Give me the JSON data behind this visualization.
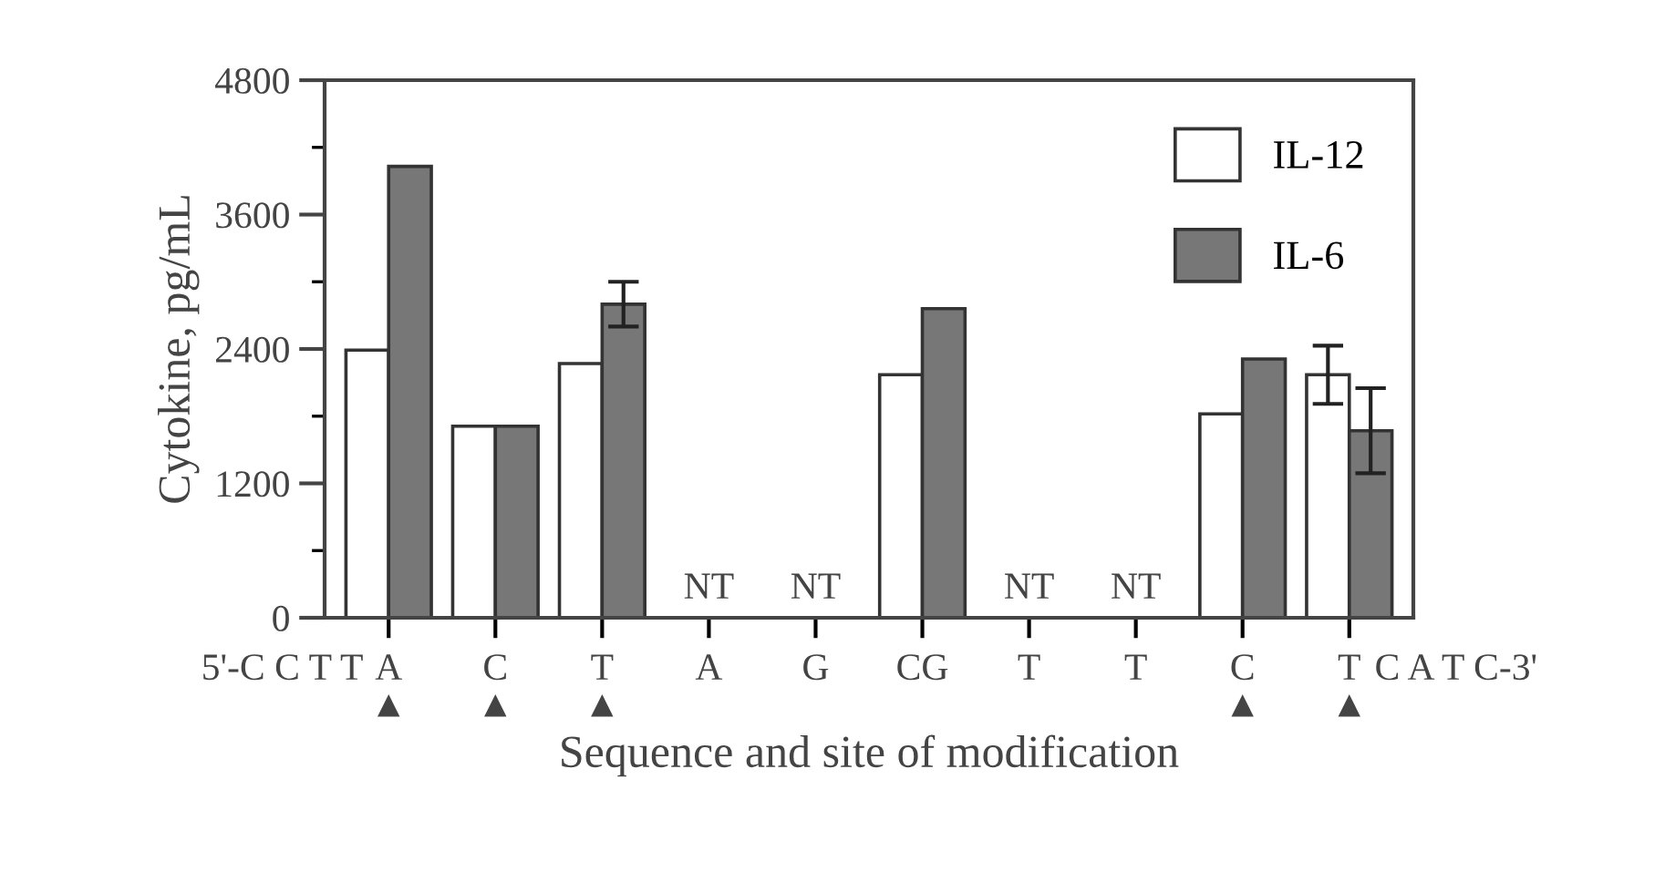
{
  "chart_data": {
    "type": "bar",
    "xlabel": "Sequence and site of modification",
    "ylabel": "Cytokine, pg/mL",
    "categories": [
      "A\n▲",
      "C\n▲",
      "T\n▲",
      "A",
      "G",
      "CG",
      "T",
      "T",
      "C\n▲",
      "T\n▲"
    ],
    "series": [
      {
        "name": "IL-12",
        "color": "#ffffff",
        "values": [
          2390,
          1710,
          2270,
          null,
          null,
          2170,
          null,
          null,
          1820,
          2170
        ],
        "errors": [
          null,
          null,
          null,
          null,
          null,
          null,
          null,
          null,
          null,
          260
        ],
        "value_labels": [
          null,
          null,
          null,
          "NT",
          "NT",
          null,
          "NT",
          "NT",
          null,
          null
        ]
      },
      {
        "name": "IL-6",
        "color": "#777777",
        "values": [
          4030,
          1710,
          2800,
          null,
          null,
          2760,
          null,
          null,
          2310,
          1670
        ],
        "errors": [
          null,
          null,
          200,
          null,
          null,
          null,
          null,
          null,
          null,
          380
        ]
      }
    ],
    "ylim": [
      0,
      4800
    ],
    "yticks": [
      0,
      {
        "value": 600,
        "label": null
      },
      1200,
      {
        "value": 1800,
        "label": null
      },
      2400,
      {
        "value": 3000,
        "label": null
      },
      3600,
      {
        "value": 4200,
        "label": null
      },
      4800
    ],
    "annotations": [
      "5'-C C T T",
      "C A T C-3'"
    ],
    "legend": "top right",
    "grid": false
  }
}
